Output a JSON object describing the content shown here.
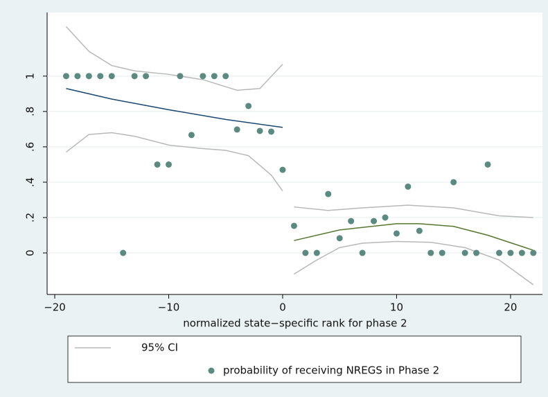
{
  "chart_data": {
    "type": "scatter",
    "x_label": "normalized state−specific rank for phase 2",
    "xlim": [
      -20.67,
      22.8
    ],
    "ylim": [
      -0.235,
      1.36
    ],
    "xticks": [
      {
        "value": -20,
        "label": "−20"
      },
      {
        "value": -10,
        "label": "−10"
      },
      0,
      10,
      20
    ],
    "yticks": [
      0,
      {
        "value": 0.2,
        "label": ".2"
      },
      {
        "value": 0.4,
        "label": ".4"
      },
      {
        "value": 0.6,
        "label": ".6"
      },
      {
        "value": 0.8,
        "label": ".8"
      },
      1
    ],
    "grid": true,
    "series": [
      {
        "name": "probability of receiving NREGS in Phase 2",
        "kind": "scatter",
        "color": "#5b8a80",
        "x": [
          -19,
          -18,
          -17,
          -16,
          -15,
          -14,
          -13,
          -12,
          -11,
          -10,
          -9,
          -8,
          -7,
          -6,
          -5,
          -4,
          -3,
          -2,
          -1,
          0,
          1,
          2,
          3,
          4,
          5,
          6,
          7,
          8,
          9,
          10,
          11,
          12,
          13,
          14,
          15,
          16,
          17,
          18,
          19,
          20,
          21,
          22
        ],
        "values": [
          1,
          1,
          1,
          1,
          1,
          0,
          1,
          1,
          0.5,
          0.5,
          1,
          0.667,
          1,
          1,
          1,
          0.698,
          0.831,
          0.69,
          0.686,
          0.47,
          0.153,
          0,
          0,
          0.333,
          0.083,
          0.18,
          0,
          0.18,
          0.2,
          0.11,
          0.375,
          0.125,
          0,
          0,
          0.4,
          0,
          0,
          0.5,
          0,
          0,
          0,
          0
        ]
      },
      {
        "name": "95% CI",
        "kind": "line",
        "color": "#b8b8b8",
        "lines": [
          {
            "x": [
              -19,
              -17,
              -15,
              -13,
              -10,
              -7,
              -5,
              -4,
              -2,
              0
            ],
            "values": [
              1.28,
              1.14,
              1.06,
              1.03,
              1.01,
              0.98,
              0.94,
              0.92,
              0.93,
              1.067
            ]
          },
          {
            "x": [
              -19,
              -17,
              -15,
              -13,
              -10,
              -7,
              -5,
              -3,
              -1,
              0
            ],
            "values": [
              0.57,
              0.67,
              0.68,
              0.66,
              0.61,
              0.59,
              0.58,
              0.55,
              0.44,
              0.35
            ]
          },
          {
            "x": [
              1,
              4,
              7,
              11,
              15,
              19,
              22
            ],
            "values": [
              0.26,
              0.24,
              0.255,
              0.27,
              0.255,
              0.21,
              0.2
            ]
          },
          {
            "x": [
              1,
              3,
              5,
              7,
              10,
              13,
              16,
              19,
              22
            ],
            "values": [
              -0.12,
              -0.04,
              0.03,
              0.055,
              0.065,
              0.06,
              0.03,
              -0.04,
              -0.18
            ]
          }
        ]
      },
      {
        "kind": "line",
        "color": "#1a476f",
        "x": [
          -19,
          -15,
          -10,
          -5,
          0
        ],
        "values": [
          0.93,
          0.87,
          0.81,
          0.755,
          0.71
        ]
      },
      {
        "kind": "line",
        "color": "#55752f",
        "x": [
          1,
          5,
          10,
          12,
          15,
          18,
          22
        ],
        "values": [
          0.07,
          0.13,
          0.165,
          0.165,
          0.15,
          0.1,
          0.015
        ]
      }
    ]
  }
}
